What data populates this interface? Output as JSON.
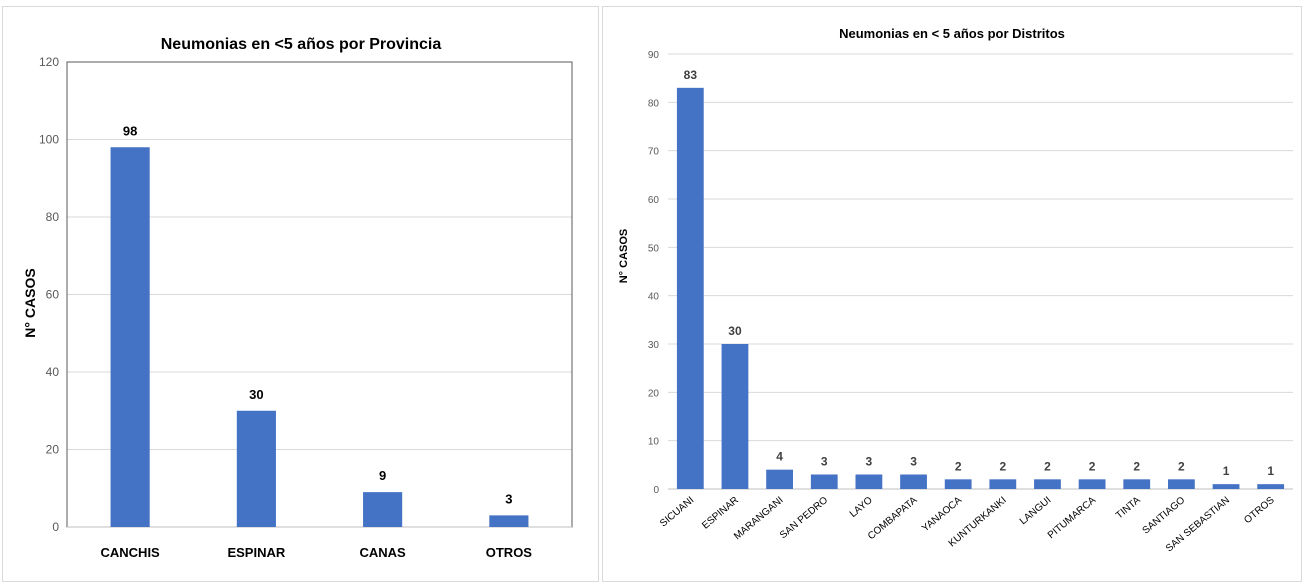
{
  "chart_data": [
    {
      "type": "bar",
      "title": "Neumonias en <5 años por Provincia",
      "ylabel": "N° CASOS",
      "xlabel": "",
      "ylim": [
        0,
        120
      ],
      "yticks": [
        0,
        20,
        40,
        60,
        80,
        100,
        120
      ],
      "grid": true,
      "categories": [
        "CANCHIS",
        "ESPINAR",
        "CANAS",
        "OTROS"
      ],
      "values": [
        98,
        30,
        9,
        3
      ],
      "data_labels": [
        "98",
        "30",
        "9",
        "3"
      ],
      "bar_color": "#4472c4"
    },
    {
      "type": "bar",
      "title": "Neumonias en < 5 años por Distritos",
      "ylabel": "N° CASOS",
      "xlabel": "",
      "ylim": [
        0,
        90
      ],
      "yticks": [
        0,
        10,
        20,
        30,
        40,
        50,
        60,
        70,
        80,
        90
      ],
      "grid": true,
      "categories": [
        "SICUANI",
        "ESPINAR",
        "MARANGANI",
        "SAN PEDRO",
        "LAYO",
        "COMBAPATA",
        "YANAOCA",
        "KUNTURKANKI",
        "LANGUI",
        "PITUMARCA",
        "TINTA",
        "SANTIAGO",
        "SAN SEBASTIAN",
        "OTROS"
      ],
      "values": [
        83,
        30,
        4,
        3,
        3,
        3,
        2,
        2,
        2,
        2,
        2,
        2,
        1,
        1
      ],
      "data_labels": [
        "83",
        "30",
        "4",
        "3",
        "3",
        "3",
        "2",
        "2",
        "2",
        "2",
        "2",
        "2",
        "1",
        "1"
      ],
      "bar_color": "#4472c4"
    }
  ]
}
